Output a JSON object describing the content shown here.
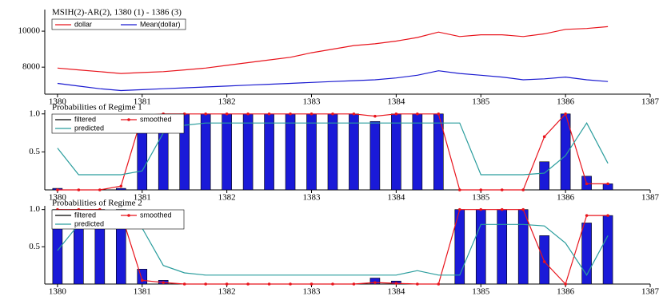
{
  "chart_data": [
    {
      "type": "line",
      "title": "MSIH(2)-AR(2), 1380 (1) - 1386 (3)",
      "x": [
        1380,
        1380.25,
        1380.5,
        1380.75,
        1381,
        1381.25,
        1381.5,
        1381.75,
        1382,
        1382.25,
        1382.5,
        1382.75,
        1383,
        1383.25,
        1383.5,
        1383.75,
        1384,
        1384.25,
        1384.5,
        1384.75,
        1385,
        1385.25,
        1385.5,
        1385.75,
        1386,
        1386.25,
        1386.5
      ],
      "xlim": [
        1379.85,
        1387
      ],
      "xticks": [
        1380,
        1381,
        1382,
        1383,
        1384,
        1385,
        1386,
        1387
      ],
      "ylim": [
        6500,
        11200
      ],
      "yticks": [
        8000,
        10000
      ],
      "series": [
        {
          "name": "dollar",
          "color": "#e8141c",
          "style": "line",
          "values": [
            7950,
            7850,
            7750,
            7650,
            7700,
            7750,
            7850,
            7950,
            8100,
            8250,
            8400,
            8550,
            8800,
            9000,
            9200,
            9300,
            9450,
            9650,
            9950,
            9700,
            9800,
            9800,
            9700,
            9850,
            10100,
            10150,
            10250
          ]
        },
        {
          "name": "Mean(dollar)",
          "color": "#1a1ad0",
          "style": "line",
          "values": [
            7100,
            6950,
            6800,
            6700,
            6750,
            6800,
            6850,
            6900,
            6950,
            7000,
            7050,
            7100,
            7150,
            7200,
            7250,
            7300,
            7400,
            7550,
            7800,
            7650,
            7550,
            7450,
            7300,
            7350,
            7450,
            7300,
            7200
          ]
        }
      ]
    },
    {
      "type": "bar",
      "title": "Probabilities of Regime 1",
      "x": [
        1380,
        1380.25,
        1380.5,
        1380.75,
        1381,
        1381.25,
        1381.5,
        1381.75,
        1382,
        1382.25,
        1382.5,
        1382.75,
        1383,
        1383.25,
        1383.5,
        1383.75,
        1384,
        1384.25,
        1384.5,
        1384.75,
        1385,
        1385.25,
        1385.5,
        1385.75,
        1386,
        1386.25,
        1386.5
      ],
      "xlim": [
        1379.85,
        1387
      ],
      "xticks": [
        1380,
        1381,
        1382,
        1383,
        1384,
        1385,
        1386,
        1387
      ],
      "ylim": [
        0,
        1.05
      ],
      "yticks": [
        0.5,
        {
          "value": 1,
          "label": "1.0"
        }
      ],
      "series": [
        {
          "name": "filtered",
          "color": "#1a1ad8",
          "style": "bar",
          "values": [
            0.02,
            0,
            0,
            0.02,
            0.8,
            0.95,
            1,
            1,
            1,
            1,
            1,
            1,
            1,
            1,
            1,
            0.9,
            1,
            1,
            1,
            0,
            0,
            0,
            0,
            0.37,
            1,
            0.18,
            0.08
          ]
        },
        {
          "name": "smoothed",
          "color": "#e8141c",
          "style": "marker-line",
          "values": [
            0,
            0,
            0,
            0.05,
            0.98,
            1,
            1,
            1,
            1,
            1,
            1,
            1,
            1,
            1,
            1,
            0.97,
            1,
            1,
            1,
            0,
            0,
            0,
            0,
            0.7,
            1,
            0.08,
            0.08
          ]
        },
        {
          "name": "predicted",
          "color": "#2a9d9d",
          "style": "line",
          "values": [
            0.55,
            0.2,
            0.2,
            0.2,
            0.25,
            0.75,
            0.85,
            0.88,
            0.88,
            0.88,
            0.88,
            0.88,
            0.88,
            0.88,
            0.88,
            0.88,
            0.88,
            0.88,
            0.88,
            0.88,
            0.2,
            0.2,
            0.2,
            0.22,
            0.45,
            0.88,
            0.35
          ]
        }
      ]
    },
    {
      "type": "bar",
      "title": "Probabilities of Regime 2",
      "x": [
        1380,
        1380.25,
        1380.5,
        1380.75,
        1381,
        1381.25,
        1381.5,
        1381.75,
        1382,
        1382.25,
        1382.5,
        1382.75,
        1383,
        1383.25,
        1383.5,
        1383.75,
        1384,
        1384.25,
        1384.5,
        1384.75,
        1385,
        1385.25,
        1385.5,
        1385.75,
        1386,
        1386.25,
        1386.5
      ],
      "xlim": [
        1379.85,
        1387
      ],
      "xticks": [
        1380,
        1381,
        1382,
        1383,
        1384,
        1385,
        1386,
        1387
      ],
      "ylim": [
        0,
        1.05
      ],
      "yticks": [
        0.5,
        {
          "value": 1,
          "label": "1.0"
        }
      ],
      "series": [
        {
          "name": "filtered",
          "color": "#1a1ad8",
          "style": "bar",
          "values": [
            1,
            1,
            1,
            1,
            0.2,
            0.05,
            0,
            0,
            0,
            0,
            0,
            0,
            0,
            0,
            0,
            0.08,
            0.04,
            0,
            0,
            1,
            1,
            1,
            1,
            0.65,
            0,
            0.82,
            0.92
          ]
        },
        {
          "name": "smoothed",
          "color": "#e8141c",
          "style": "marker-line",
          "values": [
            1,
            1,
            1,
            0.95,
            0.05,
            0.02,
            0,
            0,
            0,
            0,
            0,
            0,
            0,
            0,
            0,
            0.02,
            0.01,
            0,
            0,
            1,
            1,
            1,
            1,
            0.3,
            0,
            0.92,
            0.92
          ]
        },
        {
          "name": "predicted",
          "color": "#2a9d9d",
          "style": "line",
          "values": [
            0.45,
            0.8,
            0.8,
            0.8,
            0.75,
            0.25,
            0.15,
            0.12,
            0.12,
            0.12,
            0.12,
            0.12,
            0.12,
            0.12,
            0.12,
            0.12,
            0.12,
            0.18,
            0.12,
            0.12,
            0.8,
            0.8,
            0.8,
            0.78,
            0.55,
            0.12,
            0.65
          ]
        }
      ]
    }
  ]
}
